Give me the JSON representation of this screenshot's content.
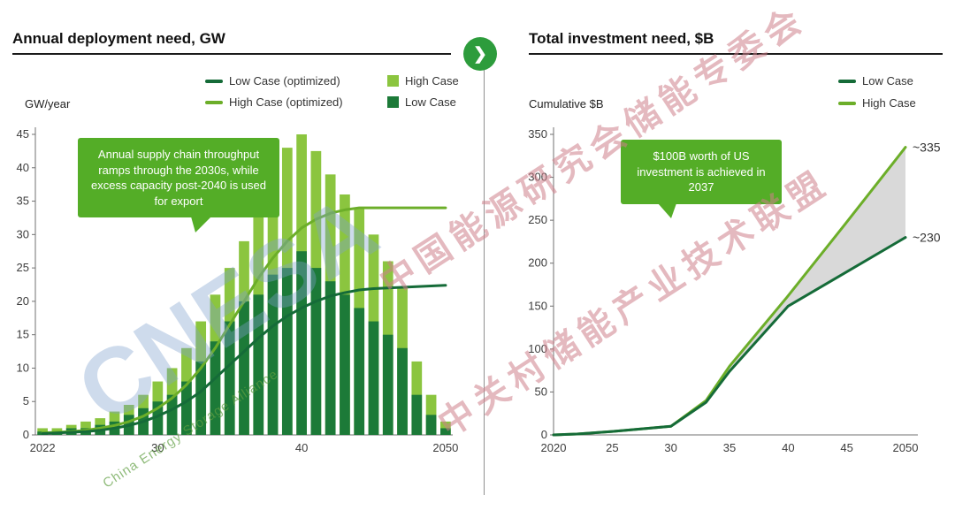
{
  "colors": {
    "callout": "#54ad27",
    "arrow_badge": "#2d9c3c",
    "high_case_bar": "#8bc53f",
    "low_case_bar": "#1c7a38",
    "high_case_line": "#6cae29",
    "low_case_line": "#156b38",
    "band": "#d9d9d9"
  },
  "icons": {
    "chevron_right": "❯"
  },
  "watermark": {
    "line1": "中国能源研究会储能专委会",
    "line2": "中关村储能产业技术联盟",
    "logo": "CNESA",
    "tagline": "China Energy Storage Alliance"
  },
  "left_panel": {
    "title": "Annual deployment need,",
    "unit": " GW",
    "callout": "Annual supply chain throughput ramps through the 2030s, while excess capacity post-2040 is used for export"
  },
  "right_panel": {
    "title": "Total investment need,",
    "unit": " $B",
    "callout": "$100B worth of US investment is achieved in 2037"
  },
  "chart_data": [
    {
      "type": "bar",
      "title": "Annual deployment need, GW",
      "ylabel": "GW/year",
      "xlabel": "",
      "ylim": [
        0,
        45
      ],
      "ytick": 5,
      "grid": false,
      "legend_position": "top-right",
      "categories": [
        2022,
        2023,
        2024,
        2025,
        2026,
        2027,
        2028,
        2029,
        2030,
        2031,
        2032,
        2033,
        2034,
        2035,
        2036,
        2037,
        2038,
        2039,
        2040,
        2041,
        2042,
        2043,
        2044,
        2045,
        2046,
        2047,
        2048,
        2049,
        2050
      ],
      "xticks": [
        {
          "index": 0,
          "label": "2022"
        },
        {
          "index": 8,
          "label": "30"
        },
        {
          "index": 18,
          "label": "40"
        },
        {
          "index": 28,
          "label": "2050"
        }
      ],
      "bar_series": [
        {
          "name": "High Case",
          "color": "#8bc53f",
          "values": [
            1,
            1,
            1.5,
            2,
            2.5,
            3.5,
            4.5,
            6,
            8,
            10,
            13,
            17,
            21,
            25,
            29,
            33,
            39,
            43,
            45,
            42.5,
            39,
            36,
            34,
            30,
            26,
            22,
            11,
            6,
            2
          ]
        },
        {
          "name": "Low Case",
          "color": "#1c7a38",
          "values": [
            0.5,
            0.5,
            1,
            1,
            1.5,
            2,
            3,
            4,
            5,
            6,
            8,
            11,
            14,
            17,
            20,
            21,
            24,
            25,
            27.5,
            25,
            23,
            21,
            19,
            17,
            15,
            13,
            6,
            3,
            1
          ]
        }
      ],
      "line_series": [
        {
          "name": "High Case (optimized)",
          "color": "#6cae29",
          "values": [
            0.3,
            0.4,
            0.5,
            0.7,
            1,
            1.4,
            2,
            2.8,
            4,
            5.5,
            7.5,
            10,
            13,
            16.5,
            20,
            23.5,
            26.5,
            29,
            31,
            32.3,
            33.2,
            33.7,
            34,
            34,
            34,
            34,
            34,
            34,
            34
          ]
        },
        {
          "name": "Low Case (optimized)",
          "color": "#156b38",
          "values": [
            0.2,
            0.3,
            0.4,
            0.5,
            0.7,
            1,
            1.4,
            2,
            2.8,
            3.8,
            5,
            6.5,
            8.5,
            10.5,
            12.5,
            14.5,
            16.3,
            17.8,
            19,
            20,
            20.8,
            21.3,
            21.7,
            21.9,
            22,
            22.1,
            22.2,
            22.3,
            22.4
          ]
        }
      ]
    },
    {
      "type": "line",
      "title": "Total investment need, $B",
      "ylabel": "Cumulative $B",
      "xlabel": "",
      "ylim": [
        0,
        350
      ],
      "ytick": 50,
      "xlim": [
        2020,
        2050
      ],
      "grid": false,
      "legend_position": "top-right",
      "band_color": "#d9d9d9",
      "x": [
        2020,
        2022,
        2025,
        2030,
        2033,
        2035,
        2040,
        2045,
        2050
      ],
      "xticks": [
        {
          "v": 2020,
          "label": "2020"
        },
        {
          "v": 2025,
          "label": "25"
        },
        {
          "v": 2030,
          "label": "30"
        },
        {
          "v": 2035,
          "label": "35"
        },
        {
          "v": 2040,
          "label": "40"
        },
        {
          "v": 2045,
          "label": "45"
        },
        {
          "v": 2050,
          "label": "2050"
        }
      ],
      "series": [
        {
          "name": "High Case",
          "color": "#6cae29",
          "values": [
            0,
            1,
            4,
            10,
            40,
            80,
            162,
            248,
            335
          ],
          "annotation": "~335"
        },
        {
          "name": "Low Case",
          "color": "#156b38",
          "values": [
            0,
            1,
            4,
            10,
            38,
            74,
            150,
            190,
            230
          ],
          "annotation": "~230"
        }
      ]
    }
  ]
}
